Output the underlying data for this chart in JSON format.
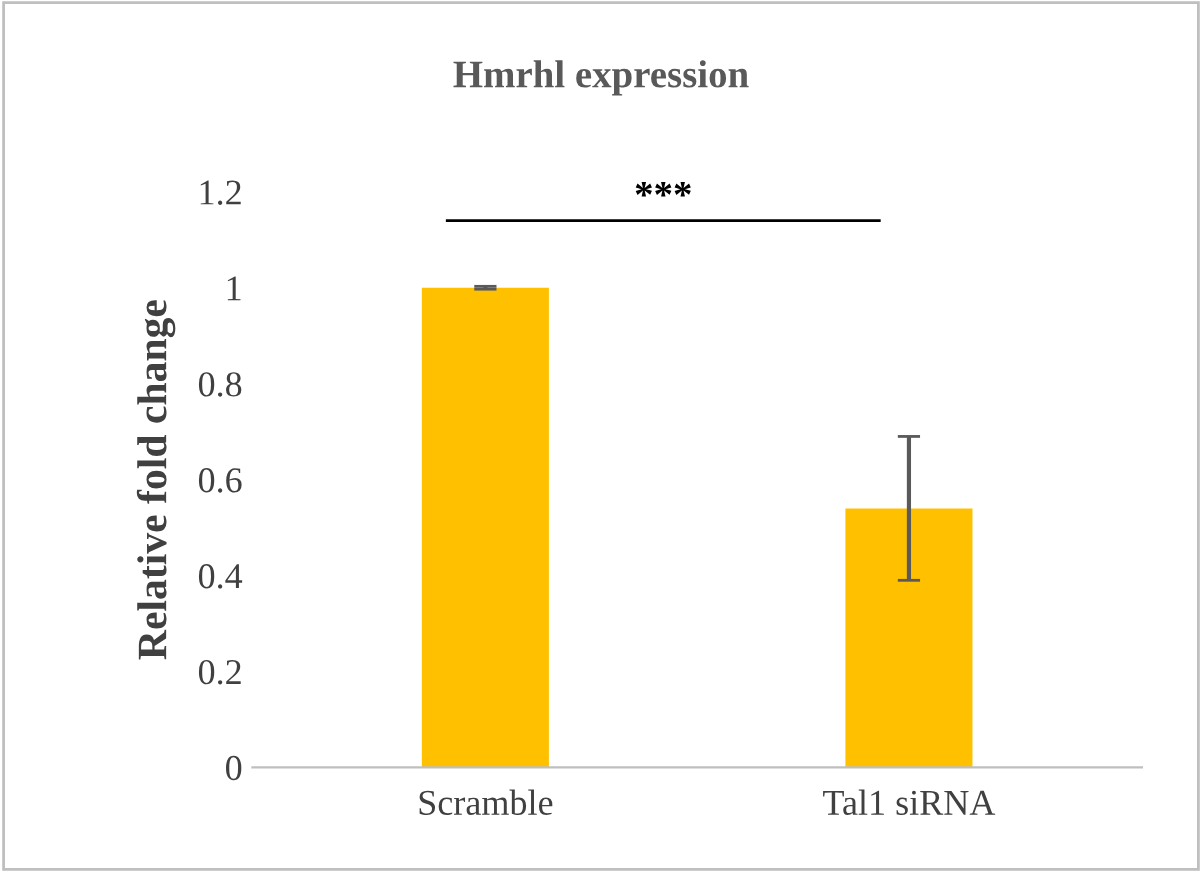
{
  "chart_data": {
    "type": "bar",
    "title": "Hmrhl expression",
    "ylabel": "Relative fold change",
    "categories": [
      "Scramble",
      "Tal1 siRNA"
    ],
    "series": [
      {
        "color": "#ffc000",
        "values": [
          1.0,
          0.54
        ],
        "errors": [
          0.003,
          0.15
        ]
      }
    ],
    "ylim": [
      0,
      1.2
    ],
    "yticks": [
      0,
      0.2,
      0.4,
      0.6,
      0.8,
      1,
      1.2
    ],
    "grid": false,
    "legend": false,
    "annotations": [
      "***"
    ]
  }
}
